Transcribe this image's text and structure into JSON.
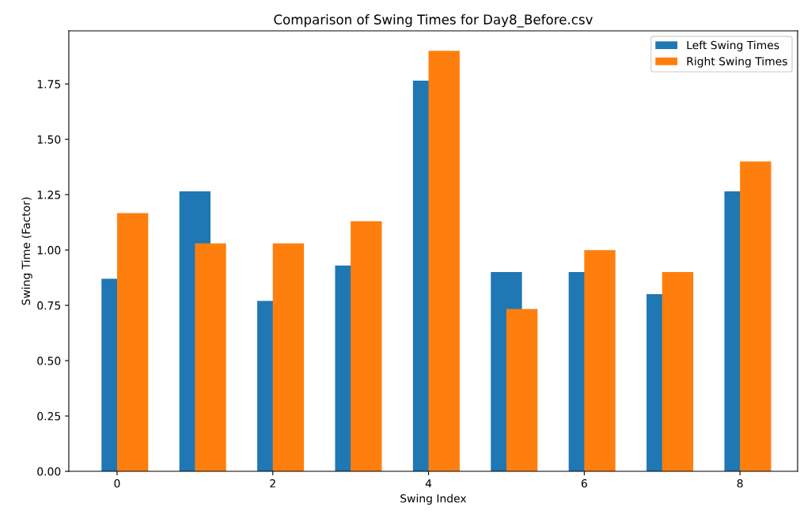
{
  "chart_data": {
    "type": "bar",
    "title": "Comparison of Swing Times for Day8_Before.csv",
    "xlabel": "Swing Index",
    "ylabel": "Swing Time (Factor)",
    "x": [
      0,
      1,
      2,
      3,
      4,
      5,
      6,
      7,
      8
    ],
    "series": [
      {
        "name": "Left Swing Times",
        "color": "#1f77b4",
        "values": [
          0.87,
          1.265,
          0.77,
          0.93,
          1.765,
          0.9,
          0.9,
          0.8,
          1.265
        ]
      },
      {
        "name": "Right Swing Times",
        "color": "#ff7f0e",
        "values": [
          1.167,
          1.03,
          1.03,
          1.13,
          1.9,
          0.733,
          1.0,
          0.9,
          1.4
        ]
      }
    ],
    "xlim": [
      -0.62,
      8.74
    ],
    "xticks": [
      0,
      2,
      4,
      6,
      8
    ],
    "ylim": [
      0,
      1.99
    ],
    "yticks": [
      {
        "value": 0,
        "label": "0.00"
      },
      {
        "value": 0.25,
        "label": "0.25"
      },
      {
        "value": 0.5,
        "label": "0.50"
      },
      {
        "value": 0.75,
        "label": "0.75"
      },
      {
        "value": 1.0,
        "label": "1.00"
      },
      {
        "value": 1.25,
        "label": "1.25"
      },
      {
        "value": 1.5,
        "label": "1.50"
      },
      {
        "value": 1.75,
        "label": "1.75"
      }
    ],
    "legend": "top right",
    "grid": false
  }
}
